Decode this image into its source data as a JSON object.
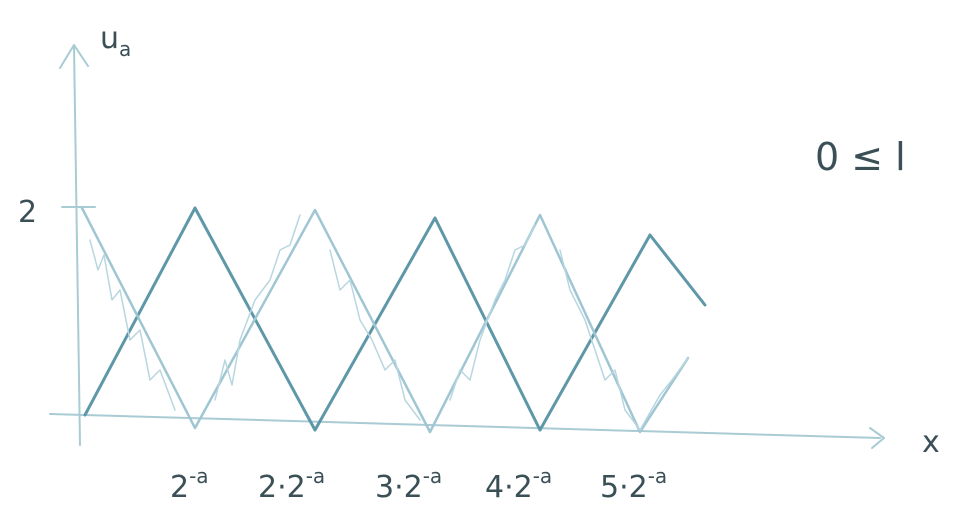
{
  "y_axis": {
    "base": "u",
    "sub": "a"
  },
  "x_axis": "x",
  "y_tick": "2",
  "x_ticks": [
    {
      "base": "2",
      "sup": "-a"
    },
    {
      "base": "2·2",
      "sup": "-a"
    },
    {
      "base": "3·2",
      "sup": "-a"
    },
    {
      "base": "4·2",
      "sup": "-a"
    },
    {
      "base": "5·2",
      "sup": "-a"
    }
  ],
  "side_note": "0 ≤ l"
}
